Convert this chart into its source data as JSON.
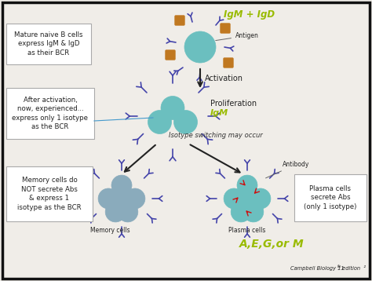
{
  "bg_color": "#f0ede8",
  "border_color": "#111111",
  "annotations": {
    "igm_igd_handwritten": "IgM + IgD",
    "antigen_label": "Antigen",
    "activation_label": "Activation",
    "proliferation_label": "Proliferation",
    "igm_handwritten": "IgM",
    "isotype_switching": "Isotype switching may occur",
    "antibody_label": "Antibody",
    "memory_cells_label": "Memory cells",
    "plasma_cells_label": "Plasma cells",
    "ae_g_or_m": "A,E,G,or M",
    "campbell_label": "Campbell Biology 11",
    "campbell_super": "th",
    "campbell_rest": " edition  ²",
    "box1_text": "Mature naive B cells\nexpress IgM & IgD\nas their BCR",
    "box2_text": "After activation,\nnow, experienced...\nexpress only 1 isotype\nas the BCR",
    "box3_text": "Memory cells do\nNOT secrete Abs\n& express 1\nisotype as the BCR",
    "box4_text": "Plasma cells\nsecrete Abs\n(only 1 isotype)"
  },
  "colors": {
    "cell_teal": "#6bbfbf",
    "cell_blue_gray": "#8aabbc",
    "cell_blue_gray2": "#7099aa",
    "receptor_color": "#4444aa",
    "antigen_color": "#c07820",
    "arrow_color": "#222222",
    "handwritten_color": "#99bb00",
    "red_arrow": "#cc1111",
    "box_bg": "#ffffff",
    "box_border": "#aaaaaa",
    "line_blue": "#4499cc",
    "text_dark": "#222222",
    "italic_dark": "#333333"
  }
}
